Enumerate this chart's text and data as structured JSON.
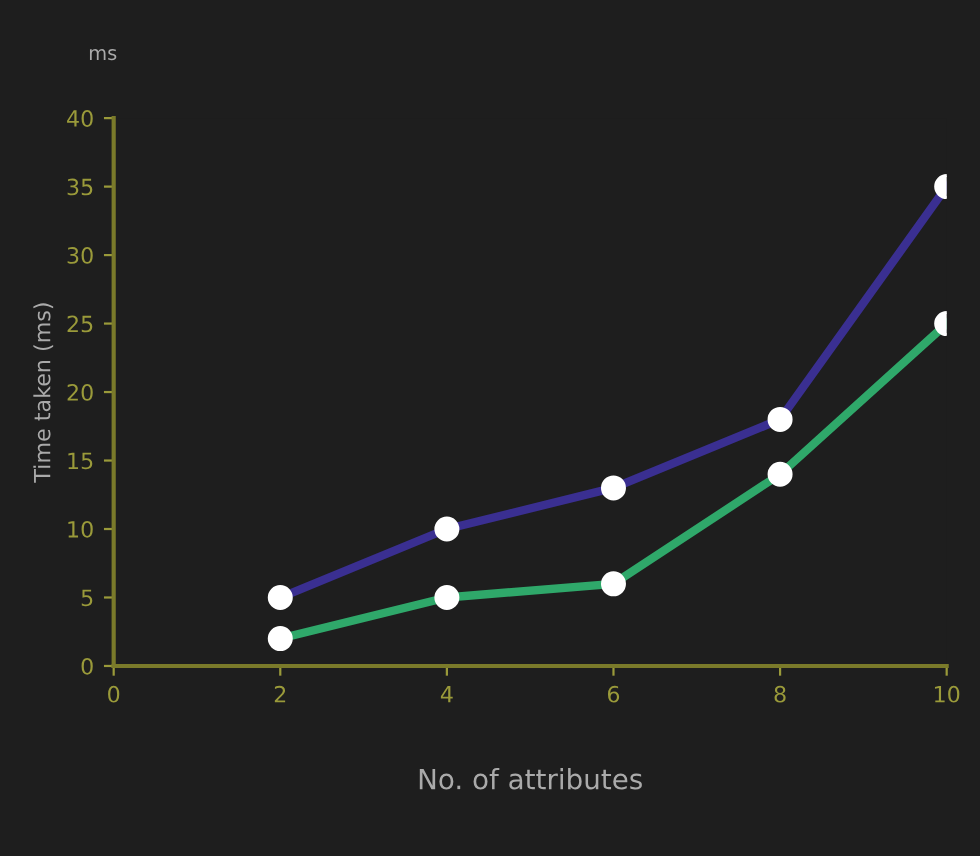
{
  "chart_data": {
    "type": "line",
    "xlabel": "No. of attributes",
    "ylabel": "Time taken (ms)",
    "annotations": [
      "ms"
    ],
    "x": [
      2,
      4,
      6,
      8,
      10
    ],
    "series": [
      {
        "color": "#3a2f91",
        "values": [
          5,
          10,
          13,
          18,
          35
        ]
      },
      {
        "color": "#2fa86a",
        "values": [
          2,
          5,
          6,
          14,
          25
        ]
      }
    ],
    "xlim": [
      0,
      10
    ],
    "xticks": [
      0,
      2,
      4,
      6,
      8,
      10
    ],
    "ylim": [
      0,
      40
    ],
    "yticks": [
      0,
      5,
      10,
      15,
      20,
      25,
      30,
      35,
      40
    ],
    "marker": "circle",
    "line_style": "solid",
    "grid": false,
    "legend": false
  }
}
